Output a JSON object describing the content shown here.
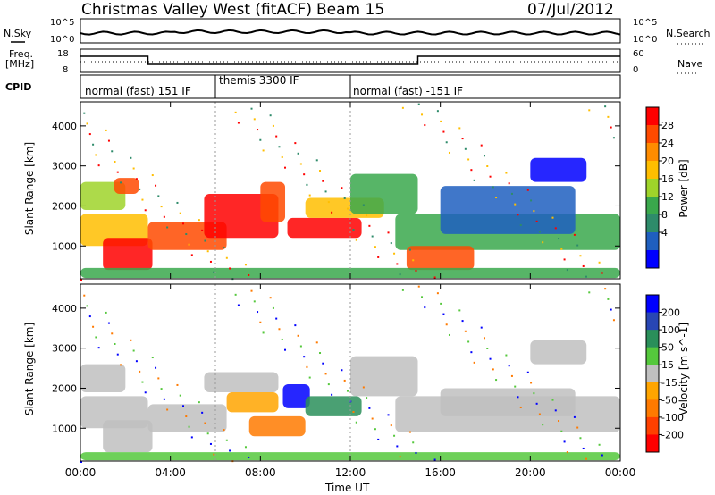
{
  "header": {
    "station": "Christmas Valley West (fitACF)",
    "beam": "Beam 15",
    "date": "07/Jul/2012"
  },
  "strip_labels": {
    "nsky": "N.Sky",
    "nsearch": "N.Search",
    "freq": "Freq.",
    "freq_unit": "[MHz]",
    "nave": "Nave",
    "cpid": "CPID",
    "nsky_ticks": [
      "10^5",
      "10^0"
    ],
    "nsearch_ticks": [
      "10^5",
      "10^0"
    ],
    "freq_ticks": [
      "18",
      "8"
    ],
    "nave_ticks": [
      "60",
      "0"
    ]
  },
  "cpid_segments": [
    {
      "label": "normal (fast) 151 IF",
      "start_hour": 0
    },
    {
      "label": "themis 3300 IF",
      "start_hour": 6
    },
    {
      "label": "normal (fast) -151 IF",
      "start_hour": 12
    }
  ],
  "chart_data": [
    {
      "type": "heatmap",
      "name": "power-panel",
      "ylabel": "Slant Range [km]",
      "xlabel": "Time UT",
      "xlim": [
        0,
        24
      ],
      "ylim": [
        180,
        4600
      ],
      "x_ticks": [
        "00:00",
        "04:00",
        "08:00",
        "12:00",
        "16:00",
        "20:00",
        "00:00"
      ],
      "y_ticks": [
        1000,
        2000,
        3000,
        4000
      ],
      "colorbar": {
        "label": "Power [dB]",
        "ticks": [
          "28",
          "24",
          "20",
          "16",
          "12",
          "8",
          "4"
        ],
        "colors": [
          "#ff0000",
          "#ff4a00",
          "#ff8c00",
          "#ffbe00",
          "#9fd42a",
          "#3aa84c",
          "#2e8b6a",
          "#1f5fbf",
          "#0000ff"
        ]
      },
      "regions": [
        {
          "t": [
            0.0,
            2.0
          ],
          "r": [
            1900,
            2600
          ],
          "level": 4
        },
        {
          "t": [
            1.5,
            2.6
          ],
          "r": [
            2300,
            2700
          ],
          "level": 1
        },
        {
          "t": [
            0.0,
            3.0
          ],
          "r": [
            1000,
            1800
          ],
          "level": 3
        },
        {
          "t": [
            1.0,
            3.2
          ],
          "r": [
            400,
            1200
          ],
          "level": 0
        },
        {
          "t": [
            3.0,
            6.5
          ],
          "r": [
            900,
            1600
          ],
          "level": 1
        },
        {
          "t": [
            5.5,
            8.8
          ],
          "r": [
            1200,
            2300
          ],
          "level": 0
        },
        {
          "t": [
            8.0,
            9.1
          ],
          "r": [
            1600,
            2600
          ],
          "level": 1
        },
        {
          "t": [
            9.2,
            12.5
          ],
          "r": [
            1200,
            1700
          ],
          "level": 0
        },
        {
          "t": [
            10.0,
            13.5
          ],
          "r": [
            1700,
            2200
          ],
          "level": 3
        },
        {
          "t": [
            12.0,
            15.0
          ],
          "r": [
            1800,
            2800
          ],
          "level": 5
        },
        {
          "t": [
            14.0,
            24.0
          ],
          "r": [
            900,
            1800
          ],
          "level": 5
        },
        {
          "t": [
            14.5,
            17.5
          ],
          "r": [
            400,
            1000
          ],
          "level": 1
        },
        {
          "t": [
            16.0,
            22.0
          ],
          "r": [
            1300,
            2500
          ],
          "level": 7
        },
        {
          "t": [
            20.0,
            22.5
          ],
          "r": [
            2600,
            3200
          ],
          "level": 8
        },
        {
          "t": [
            0.0,
            24.0
          ],
          "r": [
            200,
            450
          ],
          "level": 5
        }
      ]
    },
    {
      "type": "heatmap",
      "name": "velocity-panel",
      "ylabel": "Slant Range [km]",
      "xlabel": "Time UT",
      "xlim": [
        0,
        24
      ],
      "ylim": [
        180,
        4600
      ],
      "x_ticks": [
        "00:00",
        "04:00",
        "08:00",
        "12:00",
        "16:00",
        "20:00",
        "00:00"
      ],
      "y_ticks": [
        1000,
        2000,
        3000,
        4000
      ],
      "colorbar": {
        "label": "Velocity [m s^-1]",
        "ticks": [
          "200",
          "100",
          "50",
          "15",
          "-15",
          "-50",
          "-100",
          "-200"
        ],
        "colors": [
          "#0000ff",
          "#2846b4",
          "#2a8f5a",
          "#55c83c",
          "#c0c0c0",
          "#ffa500",
          "#ff7a00",
          "#ff4000",
          "#ff0000"
        ]
      },
      "regions": [
        {
          "t": [
            0.0,
            2.0
          ],
          "r": [
            1900,
            2600
          ],
          "level": 4
        },
        {
          "t": [
            0.0,
            3.0
          ],
          "r": [
            1000,
            1800
          ],
          "level": 4
        },
        {
          "t": [
            1.0,
            3.2
          ],
          "r": [
            400,
            1200
          ],
          "level": 4
        },
        {
          "t": [
            3.0,
            6.5
          ],
          "r": [
            900,
            1600
          ],
          "level": 4
        },
        {
          "t": [
            5.5,
            8.8
          ],
          "r": [
            1900,
            2400
          ],
          "level": 4
        },
        {
          "t": [
            6.5,
            8.8
          ],
          "r": [
            1400,
            1900
          ],
          "level": 5
        },
        {
          "t": [
            7.5,
            10.0
          ],
          "r": [
            800,
            1300
          ],
          "level": 6
        },
        {
          "t": [
            9.0,
            10.2
          ],
          "r": [
            1500,
            2100
          ],
          "level": 0
        },
        {
          "t": [
            10.0,
            12.5
          ],
          "r": [
            1300,
            1800
          ],
          "level": 2
        },
        {
          "t": [
            12.0,
            15.0
          ],
          "r": [
            1800,
            2800
          ],
          "level": 4
        },
        {
          "t": [
            14.0,
            24.0
          ],
          "r": [
            900,
            1800
          ],
          "level": 4
        },
        {
          "t": [
            16.0,
            22.0
          ],
          "r": [
            1300,
            2000
          ],
          "level": 4
        },
        {
          "t": [
            20.0,
            22.5
          ],
          "r": [
            2600,
            3200
          ],
          "level": 4
        },
        {
          "t": [
            0.0,
            24.0
          ],
          "r": [
            200,
            400
          ],
          "level": 3
        }
      ]
    }
  ]
}
